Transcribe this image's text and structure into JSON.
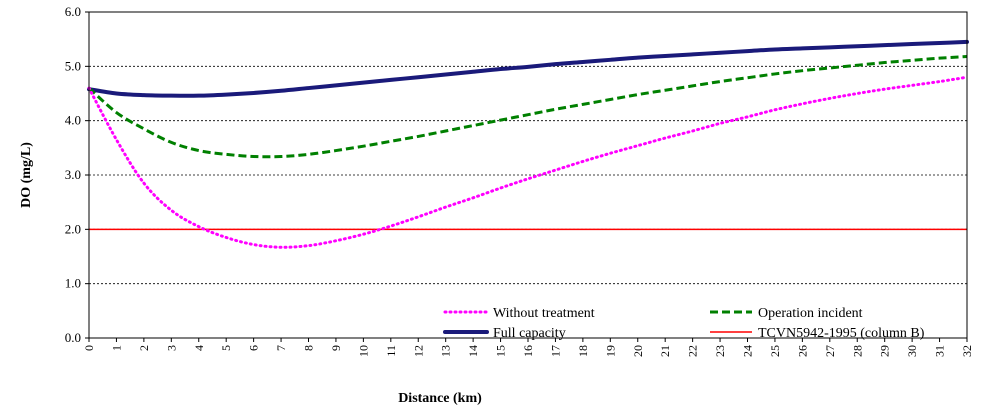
{
  "chart_data": {
    "type": "line",
    "title": "",
    "xlabel": "Distance (km)",
    "ylabel": "DO (mg/L)",
    "xlim": [
      0,
      32
    ],
    "ylim": [
      0,
      6
    ],
    "y_ticks": [
      "0.0",
      "1.0",
      "2.0",
      "3.0",
      "4.0",
      "5.0",
      "6.0"
    ],
    "x_ticks": [
      "0",
      "1",
      "2",
      "3",
      "4",
      "5",
      "6",
      "7",
      "8",
      "9",
      "10",
      "11",
      "12",
      "13",
      "14",
      "15",
      "16",
      "17",
      "18",
      "19",
      "20",
      "21",
      "22",
      "23",
      "24",
      "25",
      "26",
      "27",
      "28",
      "29",
      "30",
      "31",
      "32"
    ],
    "grid": "horizontal dashed",
    "legend_position": "bottom-inside",
    "x": [
      0,
      1,
      2,
      3,
      4,
      5,
      6,
      7,
      8,
      9,
      10,
      11,
      12,
      13,
      14,
      15,
      16,
      17,
      18,
      19,
      20,
      21,
      22,
      23,
      24,
      25,
      26,
      27,
      28,
      29,
      30,
      31,
      32
    ],
    "series": [
      {
        "name": "Without treatment",
        "color": "#ff00ff",
        "style": "dotted",
        "values": [
          4.6,
          3.65,
          2.85,
          2.35,
          2.05,
          1.85,
          1.72,
          1.67,
          1.7,
          1.79,
          1.91,
          2.06,
          2.23,
          2.41,
          2.58,
          2.76,
          2.93,
          3.09,
          3.25,
          3.4,
          3.54,
          3.68,
          3.81,
          3.95,
          4.07,
          4.2,
          4.31,
          4.41,
          4.5,
          4.58,
          4.65,
          4.72,
          4.8
        ]
      },
      {
        "name": "Operation incident",
        "color": "#008000",
        "style": "dashed",
        "values": [
          4.6,
          4.15,
          3.85,
          3.6,
          3.45,
          3.38,
          3.34,
          3.34,
          3.38,
          3.45,
          3.53,
          3.62,
          3.71,
          3.81,
          3.91,
          4.01,
          4.11,
          4.21,
          4.3,
          4.39,
          4.48,
          4.56,
          4.64,
          4.72,
          4.79,
          4.86,
          4.92,
          4.97,
          5.02,
          5.07,
          5.11,
          5.15,
          5.18
        ]
      },
      {
        "name": "Full capacity",
        "color": "#1a1a7a",
        "style": "solid-thick",
        "values": [
          4.58,
          4.5,
          4.47,
          4.46,
          4.46,
          4.48,
          4.51,
          4.55,
          4.6,
          4.65,
          4.7,
          4.75,
          4.8,
          4.85,
          4.9,
          4.95,
          4.99,
          5.04,
          5.08,
          5.12,
          5.16,
          5.19,
          5.22,
          5.25,
          5.28,
          5.31,
          5.33,
          5.35,
          5.37,
          5.39,
          5.41,
          5.43,
          5.45
        ]
      },
      {
        "name": "TCVN5942-1995 (column B)",
        "color": "#ff0000",
        "style": "solid-thin",
        "values": [
          2.0,
          2.0,
          2.0,
          2.0,
          2.0,
          2.0,
          2.0,
          2.0,
          2.0,
          2.0,
          2.0,
          2.0,
          2.0,
          2.0,
          2.0,
          2.0,
          2.0,
          2.0,
          2.0,
          2.0,
          2.0,
          2.0,
          2.0,
          2.0,
          2.0,
          2.0,
          2.0,
          2.0,
          2.0,
          2.0,
          2.0,
          2.0,
          2.0
        ]
      }
    ]
  }
}
